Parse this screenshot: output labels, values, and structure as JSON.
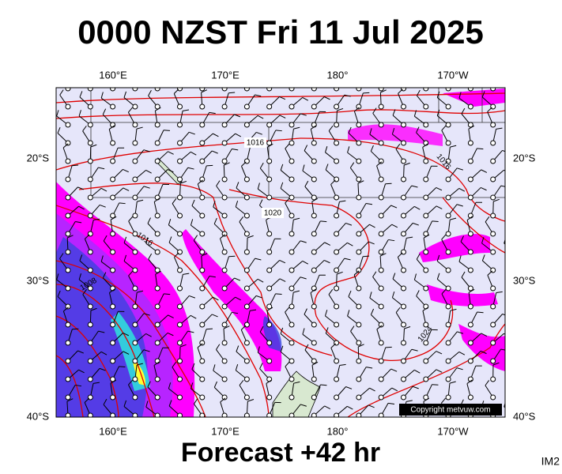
{
  "title": "0000 NZST Fri 11 Jul 2025",
  "lon_labels_top": [
    "160°E",
    "170°E",
    "180°",
    "170°W"
  ],
  "lon_labels_bottom": [
    "160°E",
    "170°E",
    "180°",
    "170°W"
  ],
  "lat_labels_left": [
    "20°S",
    "30°S",
    "40°S"
  ],
  "lat_labels_right": [
    "20°S",
    "30°S",
    "40°S"
  ],
  "isobar_labels": [
    "1016",
    "1016",
    "1020",
    "1016",
    "1008",
    "1024"
  ],
  "copyright": "Copyright metvuw.com",
  "footer": "Forecast +42 hr",
  "corner_label": "IM2"
}
